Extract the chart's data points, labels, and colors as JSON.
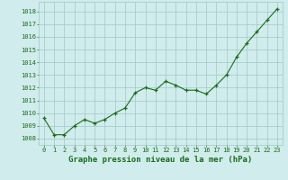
{
  "x": [
    0,
    1,
    2,
    3,
    4,
    5,
    6,
    7,
    8,
    9,
    10,
    11,
    12,
    13,
    14,
    15,
    16,
    17,
    18,
    19,
    20,
    21,
    22,
    23
  ],
  "y": [
    1009.6,
    1008.3,
    1008.3,
    1009.0,
    1009.5,
    1009.2,
    1009.5,
    1010.0,
    1010.4,
    1011.6,
    1012.0,
    1011.8,
    1012.5,
    1012.2,
    1011.8,
    1011.8,
    1011.5,
    1012.2,
    1013.0,
    1014.4,
    1015.5,
    1016.4,
    1017.3,
    1018.2
  ],
  "line_color": "#1a6b1a",
  "marker": "+",
  "bg_color": "#d0ecec",
  "grid_color": "#a0c8c8",
  "xlabel": "Graphe pression niveau de la mer (hPa)",
  "ylim": [
    1007.5,
    1018.75
  ],
  "xlim": [
    -0.5,
    23.5
  ],
  "yticks": [
    1008,
    1009,
    1010,
    1011,
    1012,
    1013,
    1014,
    1015,
    1016,
    1017,
    1018
  ],
  "xticks": [
    0,
    1,
    2,
    3,
    4,
    5,
    6,
    7,
    8,
    9,
    10,
    11,
    12,
    13,
    14,
    15,
    16,
    17,
    18,
    19,
    20,
    21,
    22,
    23
  ],
  "tick_fontsize": 5.0,
  "xlabel_fontsize": 6.5,
  "line_width": 0.8,
  "marker_size": 3.5
}
